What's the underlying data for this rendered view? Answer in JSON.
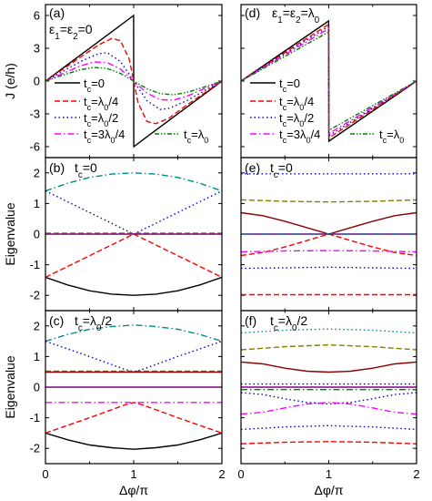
{
  "figure": {
    "x_axis_label": "Δφ/π",
    "left_j_axis_label": "J (e/h)",
    "eigen_axis_label": "Eigenvalue"
  },
  "series_styles": [
    {
      "legend": "tc=0",
      "color": "#000000",
      "dash": ""
    },
    {
      "legend": "tc=λ0/4",
      "color": "#ff0000",
      "dash": "6,3"
    },
    {
      "legend": "tc=λ0/2",
      "color": "#0000cc",
      "dash": "1.5,3"
    },
    {
      "legend": "tc=3λ0/4",
      "color": "#ff00ff",
      "dash": "7,3,1.5,3"
    },
    {
      "legend": "tc=λ0",
      "color": "#008000",
      "dash": "5,2,1.5,2,1.5,2"
    }
  ],
  "eigen_colors": {
    "black": "#000000",
    "red": "#ff0000",
    "blue": "#0000cc",
    "cyan": "#008b8b",
    "olive": "#808000",
    "brown": "#8b0000",
    "magenta": "#ff00ff",
    "green": "#008000",
    "purple": "#800080"
  },
  "chart_data": [
    {
      "panel": "(a)",
      "type": "line",
      "label": "(a)",
      "annotation": "ε1=ε2=0",
      "x_ticks": [
        "0",
        "1",
        "2"
      ],
      "xlim": [
        0,
        2
      ],
      "y_ticks": [
        "6",
        "3",
        "0",
        "-3",
        "-6"
      ],
      "ylim": [
        -7,
        7
      ],
      "ylabel": "J (e/h)",
      "legend": [
        "tc=0",
        "tc=λ0/4",
        "tc=λ0/2",
        "tc=3λ0/4",
        "tc=λ0"
      ],
      "series": [
        {
          "name": "tc=0",
          "x": [
            0,
            0.2,
            0.4,
            0.6,
            0.8,
            0.999,
            1.001,
            1.2,
            1.4,
            1.6,
            1.8,
            2.0
          ],
          "y": [
            0,
            1.2,
            2.4,
            3.6,
            4.8,
            6.0,
            -6.0,
            -4.8,
            -3.6,
            -2.4,
            -1.2,
            0
          ]
        },
        {
          "name": "tc=λ0/4",
          "x": [
            0,
            0.2,
            0.4,
            0.6,
            0.75,
            0.85,
            0.95,
            1.0,
            1.05,
            1.15,
            1.25,
            1.4,
            1.6,
            1.8,
            2.0
          ],
          "y": [
            0,
            1.1,
            2.2,
            3.3,
            3.9,
            3.7,
            2.0,
            0,
            -2.0,
            -3.7,
            -3.9,
            -3.4,
            -2.2,
            -1.1,
            0
          ]
        },
        {
          "name": "tc=λ0/2",
          "x": [
            0,
            0.2,
            0.4,
            0.6,
            0.7,
            0.85,
            1.0,
            1.15,
            1.3,
            1.4,
            1.6,
            1.8,
            2.0
          ],
          "y": [
            0,
            0.9,
            1.8,
            2.5,
            2.6,
            1.8,
            0,
            -1.8,
            -2.6,
            -2.5,
            -1.8,
            -0.9,
            0
          ]
        },
        {
          "name": "tc=3λ0/4",
          "x": [
            0,
            0.2,
            0.4,
            0.55,
            0.7,
            0.85,
            1.0,
            1.15,
            1.3,
            1.45,
            1.6,
            1.8,
            2.0
          ],
          "y": [
            0,
            0.7,
            1.4,
            1.75,
            1.7,
            1.1,
            0,
            -1.1,
            -1.7,
            -1.75,
            -1.4,
            -0.7,
            0
          ]
        },
        {
          "name": "tc=λ0",
          "x": [
            0,
            0.2,
            0.4,
            0.55,
            0.7,
            0.85,
            1.0,
            1.15,
            1.3,
            1.45,
            1.6,
            1.8,
            2.0
          ],
          "y": [
            0,
            0.55,
            1.05,
            1.25,
            1.15,
            0.7,
            0,
            -0.7,
            -1.15,
            -1.25,
            -1.05,
            -0.55,
            0
          ]
        }
      ]
    },
    {
      "panel": "(d)",
      "type": "line",
      "label": "(d)",
      "annotation": "ε1=ε2=λ0",
      "x_ticks": [
        "0",
        "1",
        "2"
      ],
      "xlim": [
        0,
        2
      ],
      "ylim": [
        -7,
        7
      ],
      "legend": [
        "tc=0",
        "tc=λ0/4",
        "tc=λ0/2",
        "tc=3λ0/4",
        "tc=λ0"
      ],
      "series": [
        {
          "name": "tc=0",
          "x": [
            0,
            0.999,
            1.001,
            2.0
          ],
          "y": [
            0,
            5.5,
            -5.5,
            0
          ]
        },
        {
          "name": "tc=λ0/4",
          "x": [
            0,
            0.999,
            1.001,
            2.0
          ],
          "y": [
            0,
            5.2,
            -5.2,
            0
          ]
        },
        {
          "name": "tc=λ0/2",
          "x": [
            0,
            0.999,
            1.001,
            2.0
          ],
          "y": [
            0,
            5.0,
            -5.0,
            0
          ]
        },
        {
          "name": "tc=3λ0/4",
          "x": [
            0,
            0.999,
            1.001,
            2.0
          ],
          "y": [
            0,
            4.8,
            -4.8,
            0
          ]
        },
        {
          "name": "tc=λ0",
          "x": [
            0,
            0.999,
            1.001,
            2.0
          ],
          "y": [
            0,
            4.5,
            -4.5,
            0
          ]
        }
      ]
    },
    {
      "panel": "(b)",
      "type": "line",
      "label": "(b)",
      "annotation": "tc=0",
      "y_ticks": [
        "2",
        "1",
        "0",
        "-1",
        "-2"
      ],
      "ylim": [
        -2.5,
        2.5
      ],
      "xlim": [
        0,
        2
      ],
      "ylabel": "Eigenvalue",
      "series": [
        {
          "color": "black",
          "dash": "solid",
          "x": [
            0,
            0.25,
            0.5,
            0.75,
            1,
            1.25,
            1.5,
            1.75,
            2
          ],
          "y": [
            -1.41,
            -1.66,
            -1.85,
            -1.96,
            -2.0,
            -1.96,
            -1.85,
            -1.66,
            -1.41
          ]
        },
        {
          "color": "cyan",
          "dash": "dashdot",
          "x": [
            0,
            0.25,
            0.5,
            0.75,
            1,
            1.25,
            1.5,
            1.75,
            2
          ],
          "y": [
            1.41,
            1.66,
            1.85,
            1.96,
            2.0,
            1.96,
            1.85,
            1.66,
            1.41
          ]
        },
        {
          "color": "red",
          "dash": "dash",
          "x": [
            0,
            1,
            2
          ],
          "y": [
            -1.41,
            0,
            -1.41
          ]
        },
        {
          "color": "blue",
          "dash": "dot",
          "x": [
            0,
            1,
            2
          ],
          "y": [
            1.41,
            0,
            1.41
          ]
        },
        {
          "color": "olive",
          "dash": "dash",
          "x": [
            0,
            2
          ],
          "y": [
            0.03,
            0.03
          ]
        },
        {
          "color": "purple",
          "dash": "solid",
          "x": [
            0,
            2
          ],
          "y": [
            0,
            0
          ]
        }
      ]
    },
    {
      "panel": "(e)",
      "type": "line",
      "label": "(e)",
      "annotation": "tc=0",
      "xlim": [
        0,
        2
      ],
      "ylim": [
        -2.5,
        2.5
      ],
      "series": [
        {
          "color": "blue",
          "dash": "dot",
          "x": [
            0,
            2
          ],
          "y": [
            1.97,
            1.97
          ]
        },
        {
          "color": "olive",
          "dash": "dash",
          "x": [
            0,
            0.5,
            1,
            1.5,
            2
          ],
          "y": [
            1.12,
            1.07,
            1.05,
            1.07,
            1.12
          ]
        },
        {
          "color": "brown",
          "dash": "solid",
          "x": [
            0,
            0.25,
            0.5,
            0.75,
            1,
            1.25,
            1.5,
            1.75,
            2
          ],
          "y": [
            0.7,
            0.6,
            0.42,
            0.21,
            0.0,
            0.21,
            0.42,
            0.6,
            0.7
          ]
        },
        {
          "color": "red",
          "dash": "dash",
          "x": [
            0,
            0.25,
            0.5,
            0.75,
            1,
            1.25,
            1.5,
            1.75,
            2
          ],
          "y": [
            -0.7,
            -0.6,
            -0.42,
            -0.21,
            0.0,
            -0.21,
            -0.42,
            -0.6,
            -0.7
          ]
        },
        {
          "color": "purple",
          "dash": "solid",
          "x": [
            0,
            2
          ],
          "y": [
            0,
            0
          ]
        },
        {
          "color": "cyan",
          "dash": "dot",
          "x": [
            0,
            2
          ],
          "y": [
            0.01,
            0.01
          ]
        },
        {
          "color": "magenta",
          "dash": "dashdot",
          "x": [
            0,
            0.5,
            1,
            1.5,
            2
          ],
          "y": [
            -0.58,
            -0.55,
            -0.54,
            -0.55,
            -0.58
          ]
        },
        {
          "color": "blue",
          "dash": "dot",
          "x": [
            0,
            0.5,
            1,
            1.5,
            2
          ],
          "y": [
            -1.12,
            -1.1,
            -1.08,
            -1.1,
            -1.12
          ]
        },
        {
          "color": "red",
          "dash": "dash",
          "x": [
            0,
            2
          ],
          "y": [
            -1.98,
            -1.98
          ]
        }
      ]
    },
    {
      "panel": "(c)",
      "type": "line",
      "label": "(c)",
      "annotation": "tc=λ0/2",
      "x_ticks": [
        "0",
        "1",
        "2"
      ],
      "xlabel": "Δφ/π",
      "y_ticks": [
        "2",
        "1",
        "0",
        "-1",
        "-2"
      ],
      "ylim": [
        -2.5,
        2.5
      ],
      "xlim": [
        0,
        2
      ],
      "ylabel": "Eigenvalue",
      "series": [
        {
          "color": "black",
          "dash": "solid",
          "x": [
            0,
            0.25,
            0.5,
            0.75,
            1,
            1.25,
            1.5,
            1.75,
            2
          ],
          "y": [
            -1.5,
            -1.72,
            -1.89,
            -1.98,
            -2.03,
            -1.98,
            -1.89,
            -1.72,
            -1.5
          ]
        },
        {
          "color": "cyan",
          "dash": "dashdot",
          "x": [
            0,
            0.25,
            0.5,
            0.75,
            1,
            1.25,
            1.5,
            1.75,
            2
          ],
          "y": [
            1.5,
            1.72,
            1.89,
            1.98,
            2.03,
            1.98,
            1.89,
            1.72,
            1.5
          ]
        },
        {
          "color": "red",
          "dash": "dash",
          "x": [
            0,
            0.5,
            0.9,
            1,
            1.1,
            1.5,
            2
          ],
          "y": [
            -1.5,
            -1.0,
            -0.58,
            -0.5,
            -0.58,
            -1.0,
            -1.5
          ]
        },
        {
          "color": "blue",
          "dash": "dot",
          "x": [
            0,
            0.5,
            0.9,
            1,
            1.1,
            1.5,
            2
          ],
          "y": [
            1.5,
            1.0,
            0.58,
            0.5,
            0.58,
            1.0,
            1.5
          ]
        },
        {
          "color": "olive",
          "dash": "dash",
          "x": [
            0,
            2
          ],
          "y": [
            0.52,
            0.52
          ]
        },
        {
          "color": "brown",
          "dash": "solid",
          "x": [
            0,
            2
          ],
          "y": [
            0.49,
            0.49
          ]
        },
        {
          "color": "purple",
          "dash": "solid",
          "x": [
            0,
            2
          ],
          "y": [
            0,
            0
          ]
        },
        {
          "color": "magenta",
          "dash": "dashdot",
          "x": [
            0,
            2
          ],
          "y": [
            -0.5,
            -0.5
          ]
        }
      ]
    },
    {
      "panel": "(f)",
      "type": "line",
      "label": "(f)",
      "annotation": "tc=λ0/2",
      "x_ticks": [
        "0",
        "1",
        "2"
      ],
      "xlabel": "Δφ/π",
      "xlim": [
        0,
        2
      ],
      "ylim": [
        -2.5,
        2.5
      ],
      "series": [
        {
          "color": "cyan",
          "dash": "dot",
          "x": [
            0,
            0.5,
            1,
            1.5,
            2
          ],
          "y": [
            1.77,
            1.86,
            1.9,
            1.86,
            1.77
          ]
        },
        {
          "color": "olive",
          "dash": "dash",
          "x": [
            0,
            0.5,
            1,
            1.5,
            2
          ],
          "y": [
            1.22,
            1.32,
            1.38,
            1.32,
            1.22
          ]
        },
        {
          "color": "brown",
          "dash": "solid",
          "x": [
            0,
            0.25,
            0.5,
            0.75,
            1,
            1.25,
            1.5,
            1.75,
            2
          ],
          "y": [
            0.82,
            0.76,
            0.62,
            0.52,
            0.49,
            0.52,
            0.62,
            0.76,
            0.82
          ]
        },
        {
          "color": "blue",
          "dash": "dot",
          "x": [
            0,
            2
          ],
          "y": [
            0.1,
            0.1
          ]
        },
        {
          "color": "purple",
          "dash": "solid",
          "x": [
            0,
            2
          ],
          "y": [
            0,
            0
          ]
        },
        {
          "color": "green",
          "dash": "dashdot",
          "x": [
            0,
            2
          ],
          "y": [
            -0.08,
            -0.08
          ]
        },
        {
          "color": "blue",
          "dash": "dot",
          "x": [
            0,
            0.25,
            0.5,
            0.75,
            1,
            1.25,
            1.5,
            1.75,
            2
          ],
          "y": [
            -0.18,
            -0.24,
            -0.38,
            -0.5,
            -0.55,
            -0.5,
            -0.38,
            -0.24,
            -0.18
          ]
        },
        {
          "color": "magenta",
          "dash": "dashdot",
          "x": [
            0,
            0.25,
            0.5,
            0.75,
            1,
            1.25,
            1.5,
            1.75,
            2
          ],
          "y": [
            -0.88,
            -0.82,
            -0.68,
            -0.55,
            -0.5,
            -0.55,
            -0.68,
            -0.82,
            -0.88
          ]
        },
        {
          "color": "blue",
          "dash": "dot",
          "x": [
            0,
            0.5,
            1,
            1.5,
            2
          ],
          "y": [
            -1.38,
            -1.3,
            -1.26,
            -1.3,
            -1.38
          ]
        },
        {
          "color": "red",
          "dash": "dash",
          "x": [
            0,
            0.5,
            1,
            1.5,
            2
          ],
          "y": [
            -1.85,
            -1.8,
            -1.78,
            -1.8,
            -1.85
          ]
        }
      ]
    }
  ]
}
